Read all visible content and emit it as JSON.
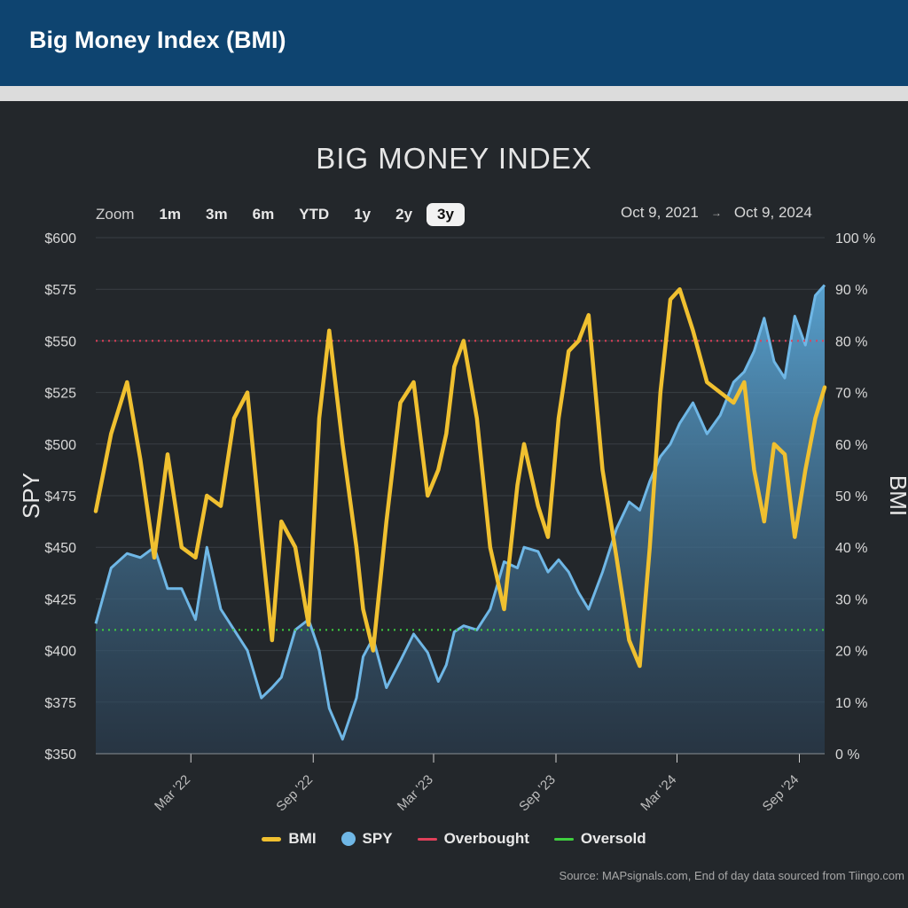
{
  "header": {
    "title": "Big Money Index (BMI)"
  },
  "zoom": {
    "label": "Zoom",
    "buttons": [
      "1m",
      "3m",
      "6m",
      "YTD",
      "1y",
      "2y",
      "3y"
    ],
    "active": "3y"
  },
  "range": {
    "from": "Oct 9, 2021",
    "to": "Oct 9, 2024"
  },
  "source": "Source: MAPsignals.com, End of day data sourced from Tiingo.com",
  "colors": {
    "bmi": "#f0c030",
    "spy": "#6fb7e6",
    "overbought": "#e0405a",
    "oversold": "#3fcf3f"
  },
  "chart_data": {
    "type": "line",
    "title": "BIG MONEY INDEX",
    "y_left_label": "SPY",
    "y_right_label": "BMI",
    "y_left_ticks": [
      "$350",
      "$375",
      "$400",
      "$425",
      "$450",
      "$475",
      "$500",
      "$525",
      "$550",
      "$575",
      "$600"
    ],
    "y_right_ticks": [
      "0 %",
      "10 %",
      "20 %",
      "30 %",
      "40 %",
      "50 %",
      "60 %",
      "70 %",
      "80 %",
      "90 %",
      "100 %"
    ],
    "y_left_range": [
      350,
      600
    ],
    "y_right_range": [
      0,
      100
    ],
    "x_range": [
      "2021-10-09",
      "2024-10-09"
    ],
    "x_ticks": [
      {
        "label": "Mar '22",
        "date": "2022-03-01"
      },
      {
        "label": "Sep '22",
        "date": "2022-09-01"
      },
      {
        "label": "Mar '23",
        "date": "2023-03-01"
      },
      {
        "label": "Sep '23",
        "date": "2023-09-01"
      },
      {
        "label": "Mar '24",
        "date": "2024-03-01"
      },
      {
        "label": "Sep '24",
        "date": "2024-09-01"
      }
    ],
    "thresholds": [
      {
        "name": "Overbought",
        "value": 80
      },
      {
        "name": "Oversold",
        "value": 24
      }
    ],
    "series": [
      {
        "name": "BMI",
        "axis": "right",
        "points": [
          [
            "2021-10-09",
            47
          ],
          [
            "2021-11-01",
            62
          ],
          [
            "2021-11-25",
            72
          ],
          [
            "2021-12-15",
            57
          ],
          [
            "2022-01-05",
            38
          ],
          [
            "2022-01-25",
            58
          ],
          [
            "2022-02-15",
            40
          ],
          [
            "2022-03-08",
            38
          ],
          [
            "2022-03-25",
            50
          ],
          [
            "2022-04-15",
            48
          ],
          [
            "2022-05-05",
            65
          ],
          [
            "2022-05-25",
            70
          ],
          [
            "2022-06-15",
            42
          ],
          [
            "2022-07-01",
            22
          ],
          [
            "2022-07-15",
            45
          ],
          [
            "2022-08-05",
            40
          ],
          [
            "2022-08-25",
            25
          ],
          [
            "2022-09-10",
            65
          ],
          [
            "2022-09-25",
            82
          ],
          [
            "2022-10-15",
            60
          ],
          [
            "2022-11-05",
            40
          ],
          [
            "2022-11-15",
            28
          ],
          [
            "2022-11-30",
            20
          ],
          [
            "2022-12-20",
            45
          ],
          [
            "2023-01-10",
            68
          ],
          [
            "2023-01-30",
            72
          ],
          [
            "2023-02-20",
            50
          ],
          [
            "2023-03-08",
            55
          ],
          [
            "2023-03-20",
            62
          ],
          [
            "2023-04-01",
            75
          ],
          [
            "2023-04-15",
            80
          ],
          [
            "2023-05-05",
            65
          ],
          [
            "2023-05-25",
            40
          ],
          [
            "2023-06-15",
            28
          ],
          [
            "2023-07-05",
            52
          ],
          [
            "2023-07-15",
            60
          ],
          [
            "2023-08-05",
            48
          ],
          [
            "2023-08-20",
            42
          ],
          [
            "2023-09-05",
            65
          ],
          [
            "2023-09-20",
            78
          ],
          [
            "2023-10-05",
            80
          ],
          [
            "2023-10-20",
            85
          ],
          [
            "2023-11-10",
            55
          ],
          [
            "2023-12-01",
            38
          ],
          [
            "2023-12-20",
            22
          ],
          [
            "2024-01-05",
            17
          ],
          [
            "2024-01-20",
            40
          ],
          [
            "2024-02-05",
            70
          ],
          [
            "2024-02-20",
            88
          ],
          [
            "2024-03-05",
            90
          ],
          [
            "2024-03-25",
            82
          ],
          [
            "2024-04-15",
            72
          ],
          [
            "2024-05-05",
            70
          ],
          [
            "2024-05-25",
            68
          ],
          [
            "2024-06-10",
            72
          ],
          [
            "2024-06-25",
            55
          ],
          [
            "2024-07-10",
            45
          ],
          [
            "2024-07-25",
            60
          ],
          [
            "2024-08-10",
            58
          ],
          [
            "2024-08-25",
            42
          ],
          [
            "2024-09-10",
            55
          ],
          [
            "2024-09-25",
            65
          ],
          [
            "2024-10-09",
            71
          ]
        ]
      },
      {
        "name": "SPY",
        "axis": "left",
        "points": [
          [
            "2021-10-09",
            413
          ],
          [
            "2021-11-01",
            440
          ],
          [
            "2021-11-25",
            447
          ],
          [
            "2021-12-15",
            445
          ],
          [
            "2022-01-05",
            450
          ],
          [
            "2022-01-25",
            430
          ],
          [
            "2022-02-15",
            430
          ],
          [
            "2022-03-08",
            415
          ],
          [
            "2022-03-25",
            450
          ],
          [
            "2022-04-15",
            420
          ],
          [
            "2022-05-05",
            410
          ],
          [
            "2022-05-25",
            400
          ],
          [
            "2022-06-15",
            377
          ],
          [
            "2022-07-01",
            382
          ],
          [
            "2022-07-15",
            387
          ],
          [
            "2022-08-05",
            410
          ],
          [
            "2022-08-25",
            415
          ],
          [
            "2022-09-10",
            400
          ],
          [
            "2022-09-25",
            372
          ],
          [
            "2022-10-15",
            357
          ],
          [
            "2022-11-05",
            377
          ],
          [
            "2022-11-15",
            397
          ],
          [
            "2022-11-30",
            406
          ],
          [
            "2022-12-20",
            382
          ],
          [
            "2023-01-10",
            395
          ],
          [
            "2023-01-30",
            408
          ],
          [
            "2023-02-20",
            399
          ],
          [
            "2023-03-08",
            385
          ],
          [
            "2023-03-20",
            393
          ],
          [
            "2023-04-01",
            409
          ],
          [
            "2023-04-15",
            412
          ],
          [
            "2023-05-05",
            410
          ],
          [
            "2023-05-25",
            420
          ],
          [
            "2023-06-15",
            443
          ],
          [
            "2023-07-05",
            440
          ],
          [
            "2023-07-15",
            450
          ],
          [
            "2023-08-05",
            448
          ],
          [
            "2023-08-20",
            438
          ],
          [
            "2023-09-05",
            444
          ],
          [
            "2023-09-20",
            438
          ],
          [
            "2023-10-05",
            428
          ],
          [
            "2023-10-20",
            420
          ],
          [
            "2023-11-10",
            438
          ],
          [
            "2023-12-01",
            459
          ],
          [
            "2023-12-20",
            472
          ],
          [
            "2024-01-05",
            468
          ],
          [
            "2024-01-20",
            482
          ],
          [
            "2024-02-05",
            494
          ],
          [
            "2024-02-20",
            500
          ],
          [
            "2024-03-05",
            510
          ],
          [
            "2024-03-25",
            520
          ],
          [
            "2024-04-15",
            505
          ],
          [
            "2024-05-05",
            514
          ],
          [
            "2024-05-25",
            530
          ],
          [
            "2024-06-10",
            535
          ],
          [
            "2024-06-25",
            545
          ],
          [
            "2024-07-10",
            561
          ],
          [
            "2024-07-25",
            540
          ],
          [
            "2024-08-10",
            532
          ],
          [
            "2024-08-25",
            562
          ],
          [
            "2024-09-10",
            548
          ],
          [
            "2024-09-25",
            572
          ],
          [
            "2024-10-09",
            577
          ]
        ]
      }
    ]
  },
  "legend": [
    {
      "label": "BMI",
      "symbol": "line",
      "color": "#f0c030"
    },
    {
      "label": "SPY",
      "symbol": "dot",
      "color": "#6fb7e6"
    },
    {
      "label": "Overbought",
      "symbol": "line",
      "color": "#e0405a"
    },
    {
      "label": "Oversold",
      "symbol": "line",
      "color": "#3fcf3f"
    }
  ]
}
